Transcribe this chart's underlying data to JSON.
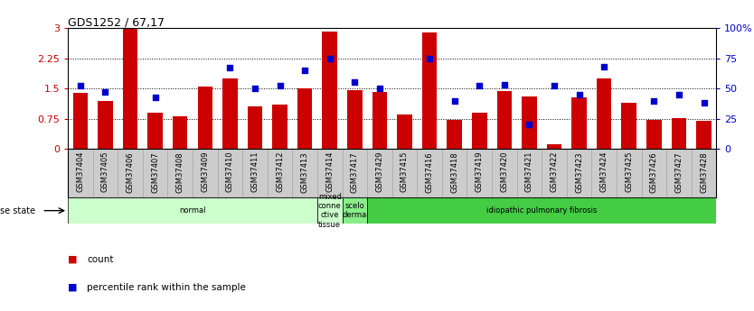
{
  "title": "GDS1252 / 67,17",
  "samples": [
    "GSM37404",
    "GSM37405",
    "GSM37406",
    "GSM37407",
    "GSM37408",
    "GSM37409",
    "GSM37410",
    "GSM37411",
    "GSM37412",
    "GSM37413",
    "GSM37414",
    "GSM37417",
    "GSM37429",
    "GSM37415",
    "GSM37416",
    "GSM37418",
    "GSM37419",
    "GSM37420",
    "GSM37421",
    "GSM37422",
    "GSM37423",
    "GSM37424",
    "GSM37425",
    "GSM37426",
    "GSM37427",
    "GSM37428"
  ],
  "bar_values": [
    1.4,
    1.2,
    2.98,
    0.9,
    0.82,
    1.55,
    1.75,
    1.05,
    1.1,
    1.5,
    2.92,
    1.45,
    1.42,
    0.85,
    2.9,
    0.72,
    0.9,
    1.43,
    1.3,
    0.12,
    1.28,
    1.75,
    1.15,
    0.72,
    0.77,
    0.7
  ],
  "dot_values": [
    52,
    47,
    null,
    43,
    null,
    null,
    67,
    50,
    52,
    65,
    75,
    55,
    50,
    null,
    75,
    40,
    52,
    53,
    20,
    52,
    45,
    68,
    null,
    40,
    45,
    38
  ],
  "bar_color": "#cc0000",
  "dot_color": "#0000cc",
  "ylim_left": [
    0,
    3
  ],
  "ylim_right": [
    0,
    100
  ],
  "yticks_left": [
    0,
    0.75,
    1.5,
    2.25,
    3
  ],
  "yticks_right": [
    0,
    25,
    50,
    75,
    100
  ],
  "ytick_labels_left": [
    "0",
    "0.75",
    "1.5",
    "2.25",
    "3"
  ],
  "ytick_labels_right": [
    "0",
    "25",
    "50",
    "75",
    "100%"
  ],
  "disease_groups": [
    {
      "label": "normal",
      "start": 0,
      "end": 10,
      "color": "#ccffcc"
    },
    {
      "label": "mixed\nconne\nctive\ntissue",
      "start": 10,
      "end": 11,
      "color": "#ccffcc"
    },
    {
      "label": "scelo\nderma",
      "start": 11,
      "end": 12,
      "color": "#88ee88"
    },
    {
      "label": "idiopathic pulmonary fibrosis",
      "start": 12,
      "end": 26,
      "color": "#44cc44"
    }
  ],
  "disease_state_label": "disease state",
  "legend_bar_label": "count",
  "legend_dot_label": "percentile rank within the sample",
  "bg_color": "#ffffff",
  "xtick_bg_color": "#cccccc",
  "bar_width": 0.6
}
